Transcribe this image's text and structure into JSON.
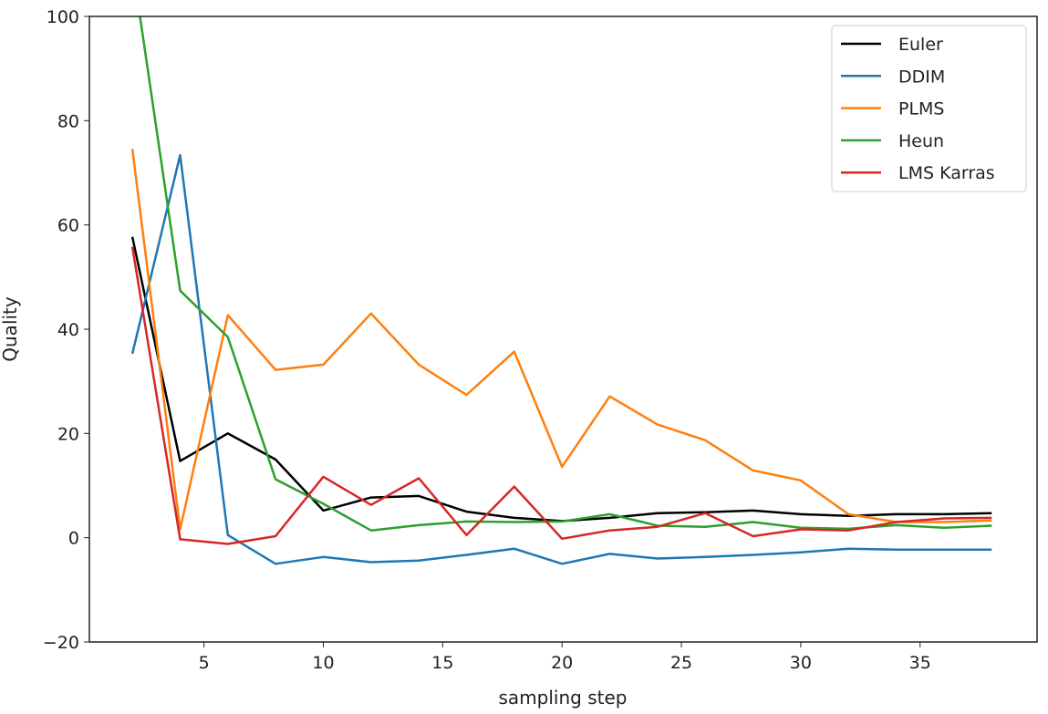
{
  "chart_data": {
    "type": "line",
    "title": "",
    "xlabel": "sampling step",
    "ylabel": "Quality",
    "xlim": [
      0.2,
      39.9
    ],
    "ylim": [
      -20,
      100
    ],
    "xticks": [
      5,
      10,
      15,
      20,
      25,
      30,
      35
    ],
    "yticks": [
      -20,
      0,
      20,
      40,
      60,
      80,
      100
    ],
    "grid": false,
    "legend_position": "top-right",
    "x": [
      2,
      4,
      6,
      8,
      10,
      12,
      14,
      16,
      18,
      20,
      22,
      24,
      26,
      28,
      30,
      32,
      34,
      36,
      38
    ],
    "series": [
      {
        "name": "Euler",
        "color": "#000000",
        "values": [
          57.7,
          14.7,
          20,
          15,
          5.2,
          7.7,
          8,
          5,
          3.8,
          3.2,
          3.8,
          4.7,
          4.9,
          5.2,
          4.5,
          4.2,
          4.5,
          4.5,
          4.7
        ]
      },
      {
        "name": "DDIM",
        "color": "#1f77b4",
        "values": [
          35.3,
          73.4,
          0.5,
          -5,
          -3.7,
          -4.7,
          -4.4,
          -3.3,
          -2.1,
          -5,
          -3.1,
          -4,
          -3.7,
          -3.3,
          -2.8,
          -2.1,
          -2.3,
          -2.3,
          -2.3
        ]
      },
      {
        "name": "PLMS",
        "color": "#ff7f0e",
        "values": [
          74.6,
          1.6,
          42.7,
          32.2,
          33.2,
          43,
          33.2,
          27.4,
          35.7,
          13.6,
          27.1,
          21.7,
          18.7,
          12.9,
          11,
          4.5,
          3,
          3,
          3.3
        ]
      },
      {
        "name": "Heun",
        "color": "#2ca02c",
        "values": [
          110,
          47.4,
          38.5,
          11.2,
          6.5,
          1.4,
          2.4,
          3.1,
          3,
          3.1,
          4.5,
          2.3,
          2.1,
          3,
          1.9,
          1.7,
          2.4,
          1.9,
          2.3
        ]
      },
      {
        "name": "LMS Karras",
        "color": "#d62728",
        "values": [
          55.8,
          -0.3,
          -1.2,
          0.3,
          11.7,
          6.3,
          11.4,
          0.5,
          9.8,
          -0.2,
          1.4,
          2.1,
          4.7,
          0.3,
          1.6,
          1.4,
          3,
          3.7,
          3.8
        ]
      }
    ]
  }
}
